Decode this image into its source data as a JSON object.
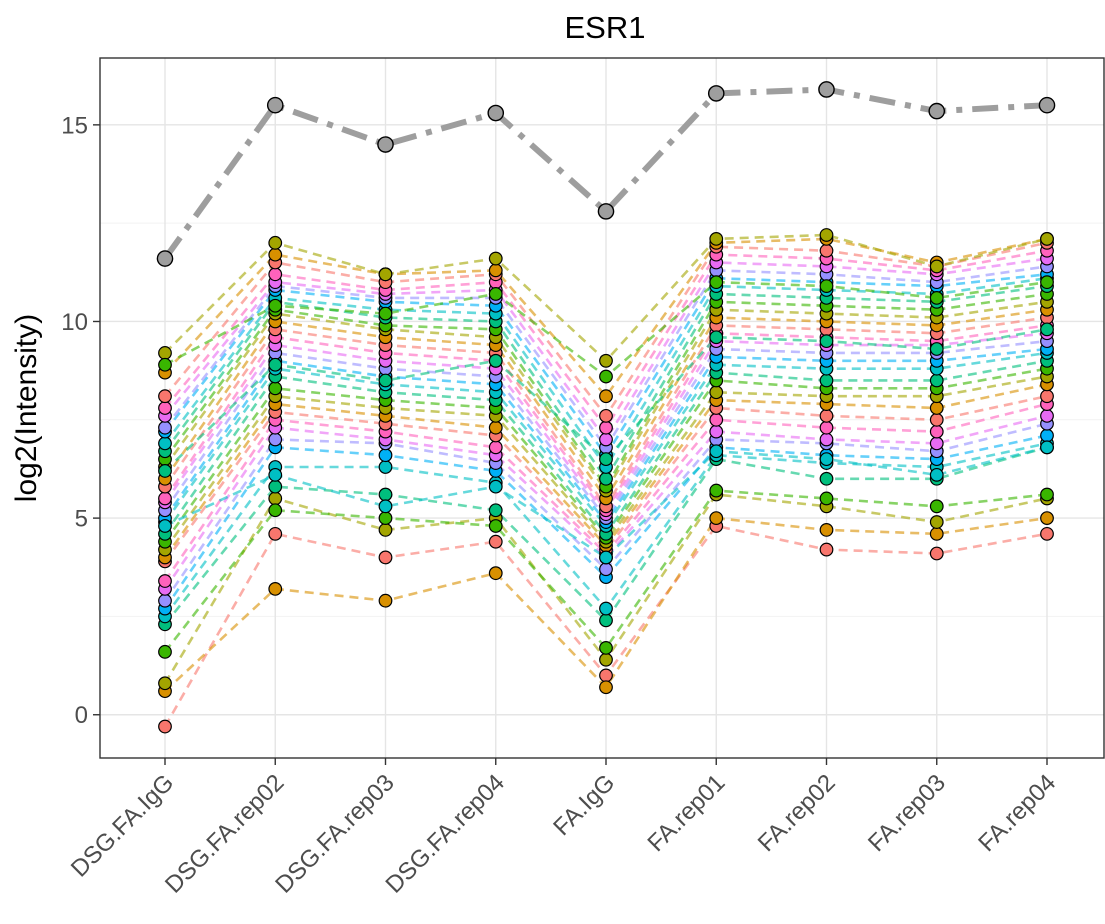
{
  "chart_data": {
    "type": "line",
    "title": "ESR1",
    "xlabel": "",
    "ylabel": "log2(Intensity)",
    "categories": [
      "DSG.FA.IgG",
      "DSG.FA.rep02",
      "DSG.FA.rep03",
      "DSG.FA.rep04",
      "FA.IgG",
      "FA.rep01",
      "FA.rep02",
      "FA.rep03",
      "FA.rep04"
    ],
    "ylim": [
      -1.1,
      16.7
    ],
    "yticks": [
      0,
      5,
      10,
      15
    ],
    "grid": true,
    "legend": "none",
    "colors": {
      "highlight": "#9e9e9e",
      "point_edge": "#000000",
      "palette": [
        "#f8766d",
        "#d89000",
        "#a3a500",
        "#39b600",
        "#00bf7d",
        "#00bfc4",
        "#00b0f6",
        "#9590ff",
        "#e76bf3",
        "#ff62bc"
      ]
    },
    "highlight_series": {
      "values": [
        11.6,
        15.5,
        14.5,
        15.3,
        12.8,
        15.8,
        15.9,
        15.35,
        15.5
      ]
    },
    "series": [
      {
        "values": [
          -0.3,
          4.6,
          4.0,
          4.4,
          1.0,
          4.8,
          4.2,
          4.1,
          4.6
        ]
      },
      {
        "values": [
          0.6,
          3.2,
          2.9,
          3.6,
          0.7,
          5.0,
          4.7,
          4.6,
          5.0
        ]
      },
      {
        "values": [
          0.8,
          5.5,
          4.7,
          5.0,
          1.4,
          5.6,
          5.3,
          4.9,
          5.5
        ]
      },
      {
        "values": [
          1.6,
          5.2,
          5.0,
          4.8,
          1.7,
          5.7,
          5.5,
          5.3,
          5.6
        ]
      },
      {
        "values": [
          2.3,
          5.8,
          5.6,
          5.2,
          2.4,
          6.5,
          6.0,
          6.0,
          6.8
        ]
      },
      {
        "values": [
          2.5,
          6.3,
          6.3,
          5.9,
          2.7,
          6.6,
          6.4,
          6.3,
          6.9
        ]
      },
      {
        "values": [
          2.7,
          6.8,
          6.6,
          6.2,
          3.5,
          6.8,
          6.6,
          6.5,
          7.1
        ]
      },
      {
        "values": [
          2.9,
          7.0,
          6.9,
          6.4,
          3.7,
          7.0,
          6.9,
          6.7,
          7.4
        ]
      },
      {
        "values": [
          3.2,
          7.3,
          7.0,
          6.6,
          4.0,
          7.2,
          7.0,
          6.9,
          7.6
        ]
      },
      {
        "values": [
          3.4,
          7.5,
          7.2,
          6.8,
          4.1,
          7.5,
          7.3,
          7.2,
          7.9
        ]
      },
      {
        "values": [
          3.9,
          7.7,
          7.4,
          7.1,
          4.2,
          7.8,
          7.6,
          7.5,
          8.1
        ]
      },
      {
        "values": [
          4.0,
          7.9,
          7.6,
          7.3,
          4.3,
          8.0,
          7.9,
          7.8,
          8.4
        ]
      },
      {
        "values": [
          4.2,
          8.1,
          7.8,
          7.6,
          4.4,
          8.2,
          8.1,
          8.1,
          8.6
        ]
      },
      {
        "values": [
          4.4,
          8.3,
          8.0,
          7.8,
          4.5,
          8.5,
          8.3,
          8.3,
          8.8
        ]
      },
      {
        "values": [
          4.6,
          8.6,
          8.2,
          8.0,
          4.6,
          8.7,
          8.5,
          8.5,
          9.0
        ]
      },
      {
        "values": [
          4.9,
          8.8,
          8.4,
          8.2,
          4.8,
          8.9,
          8.8,
          8.8,
          9.2
        ]
      },
      {
        "values": [
          5.0,
          9.0,
          8.6,
          8.4,
          4.9,
          9.1,
          9.0,
          9.0,
          9.3
        ]
      },
      {
        "values": [
          5.2,
          9.2,
          8.8,
          8.6,
          5.0,
          9.3,
          9.2,
          9.2,
          9.5
        ]
      },
      {
        "values": [
          5.4,
          9.4,
          9.0,
          8.8,
          5.1,
          9.5,
          9.4,
          9.4,
          9.7
        ]
      },
      {
        "values": [
          5.5,
          9.6,
          9.2,
          9.0,
          5.2,
          9.7,
          9.6,
          9.5,
          9.9
        ]
      },
      {
        "values": [
          5.8,
          9.8,
          9.4,
          9.2,
          5.3,
          9.9,
          9.8,
          9.7,
          10.1
        ]
      },
      {
        "values": [
          6.0,
          10.0,
          9.6,
          9.4,
          5.5,
          10.1,
          10.0,
          9.9,
          10.3
        ]
      },
      {
        "values": [
          6.3,
          10.2,
          9.8,
          9.6,
          5.7,
          10.3,
          10.2,
          10.1,
          10.5
        ]
      },
      {
        "values": [
          6.5,
          10.3,
          9.9,
          9.8,
          5.8,
          10.5,
          10.4,
          10.3,
          10.7
        ]
      },
      {
        "values": [
          6.7,
          10.5,
          10.1,
          10.0,
          6.0,
          10.7,
          10.6,
          10.5,
          10.9
        ]
      },
      {
        "values": [
          6.9,
          10.6,
          10.3,
          10.2,
          6.3,
          10.9,
          10.8,
          10.7,
          11.1
        ]
      },
      {
        "values": [
          7.2,
          10.8,
          10.5,
          10.4,
          6.6,
          11.1,
          11.0,
          10.9,
          11.2
        ]
      },
      {
        "values": [
          7.3,
          10.9,
          10.6,
          10.6,
          6.8,
          11.3,
          11.2,
          11.0,
          11.4
        ]
      },
      {
        "values": [
          7.6,
          11.0,
          10.7,
          10.8,
          7.0,
          11.5,
          11.4,
          11.2,
          11.6
        ]
      },
      {
        "values": [
          7.8,
          11.2,
          10.8,
          11.0,
          7.3,
          11.7,
          11.6,
          11.3,
          11.8
        ]
      },
      {
        "values": [
          8.1,
          11.5,
          11.0,
          11.2,
          7.6,
          11.9,
          11.8,
          11.4,
          12.0
        ]
      },
      {
        "values": [
          8.7,
          11.7,
          11.2,
          11.3,
          8.1,
          12.0,
          12.1,
          11.5,
          12.1
        ]
      },
      {
        "values": [
          9.2,
          12.0,
          11.2,
          11.6,
          9.0,
          12.1,
          12.2,
          11.4,
          12.1
        ]
      },
      {
        "values": [
          8.9,
          10.4,
          10.2,
          10.7,
          8.6,
          11.0,
          10.9,
          10.6,
          11.0
        ]
      },
      {
        "values": [
          6.2,
          8.9,
          8.5,
          9.0,
          6.5,
          9.6,
          9.5,
          9.3,
          9.8
        ]
      },
      {
        "values": [
          4.8,
          6.1,
          5.3,
          5.8,
          4.0,
          6.7,
          6.5,
          6.1,
          6.8
        ]
      }
    ]
  }
}
